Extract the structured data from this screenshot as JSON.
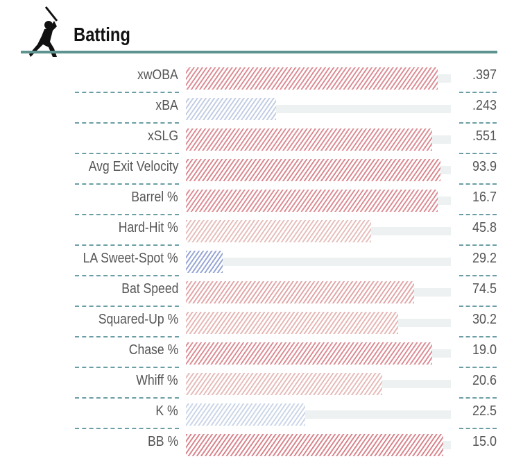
{
  "header": {
    "title": "Batting",
    "icon": "batter-silhouette-icon"
  },
  "chart_data": {
    "type": "bar",
    "orientation": "horizontal",
    "title": "Batting",
    "xlim": [
      0,
      100
    ],
    "categories": [
      "xwOBA",
      "xBA",
      "xSLG",
      "Avg Exit Velocity",
      "Barrel %",
      "Hard-Hit %",
      "LA Sweet-Spot %",
      "Bat Speed",
      "Squared-Up %",
      "Chase %",
      "Whiff %",
      "K %",
      "BB %"
    ],
    "percentiles": [
      95,
      34,
      93,
      96,
      95,
      70,
      14,
      86,
      80,
      93,
      74,
      45,
      97
    ],
    "value_labels": [
      ".397",
      ".243",
      ".551",
      "93.9",
      "16.7",
      "45.8",
      "29.2",
      "74.5",
      "30.2",
      "19.0",
      "20.6",
      "22.5",
      "15.0"
    ],
    "colors": [
      "#dc8e95",
      "#c2cde4",
      "#dc8e95",
      "#da8a90",
      "#dc8e95",
      "#e6bfbc",
      "#97a6d4",
      "#e2a7a8",
      "#e6b7b4",
      "#dc8e95",
      "#e6bcba",
      "#cbd6e8",
      "#d9868d"
    ]
  }
}
